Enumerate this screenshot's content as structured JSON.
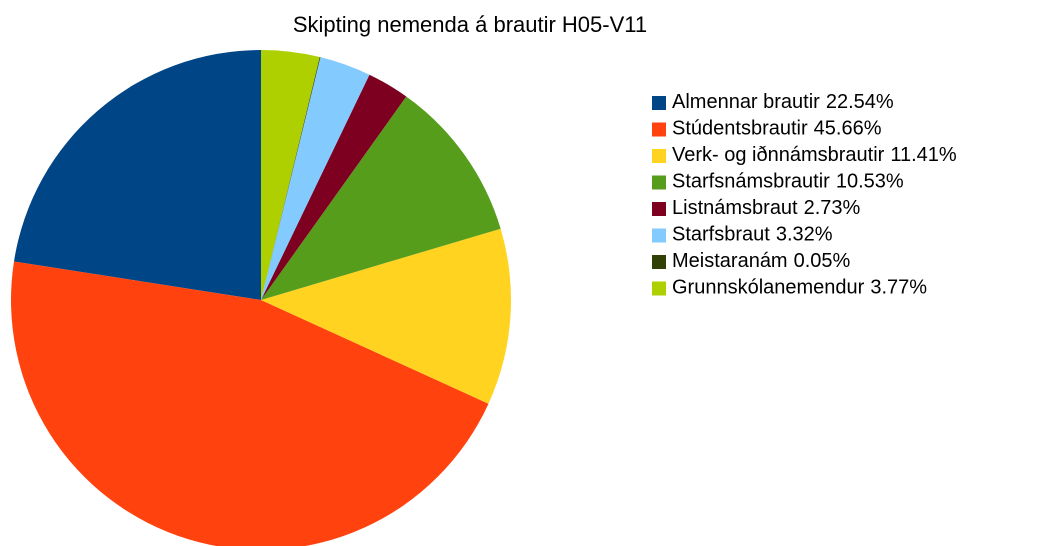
{
  "chart_data": {
    "type": "pie",
    "title": "Skipting nemenda á brautir H05-V11",
    "categories": [
      "Almennar brautir",
      "Stúdentsbrautir",
      "Verk- og iðnnámsbrautir",
      "Starfsnámsbrautir",
      "Listnámsbraut",
      "Starfsbraut",
      "Meistaranám",
      "Grunnskólanemendur"
    ],
    "values": [
      22.54,
      45.66,
      11.41,
      10.53,
      2.73,
      3.32,
      0.05,
      3.77
    ],
    "value_labels": [
      "22.54%",
      "45.66%",
      "11.41%",
      "10.53%",
      "2.73%",
      "3.32%",
      "0.05%",
      "3.77%"
    ],
    "colors": [
      "#004586",
      "#ff420e",
      "#ffd320",
      "#579d1c",
      "#7e0021",
      "#83caff",
      "#314004",
      "#aecf00"
    ],
    "legend": "right"
  }
}
